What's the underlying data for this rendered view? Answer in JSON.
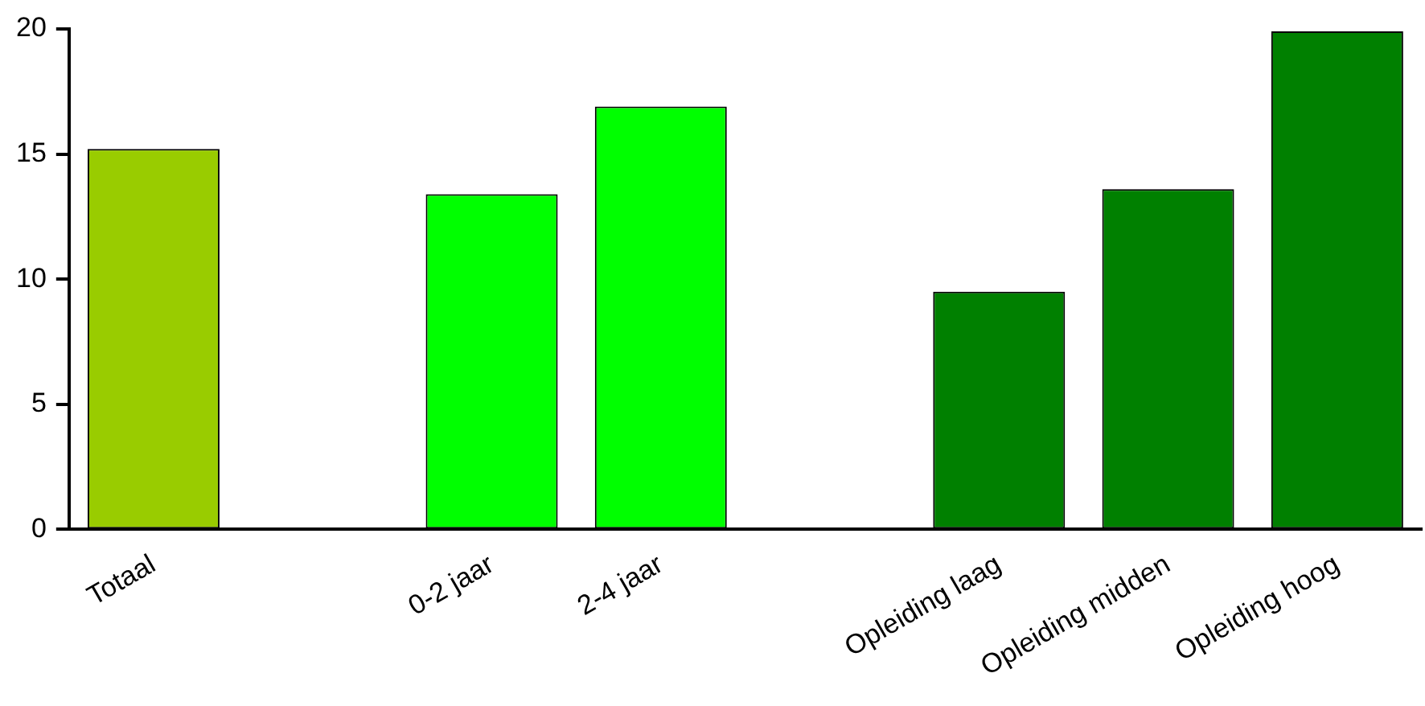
{
  "chart_data": {
    "type": "bar",
    "categories": [
      "Totaal",
      null,
      "0-2 jaar",
      "2-4 jaar",
      null,
      "Opleiding laag",
      "Opleiding midden",
      "Opleiding hoog"
    ],
    "values": [
      15.2,
      null,
      13.4,
      16.9,
      null,
      9.5,
      13.6,
      19.9
    ],
    "colors": [
      "#99cc00",
      null,
      "#00ff00",
      "#00ff00",
      null,
      "#008000",
      "#008000",
      "#008000"
    ],
    "ylim": [
      0,
      20
    ],
    "yticks": [
      0,
      5,
      10,
      15,
      20
    ],
    "grid": false,
    "legend": false
  }
}
